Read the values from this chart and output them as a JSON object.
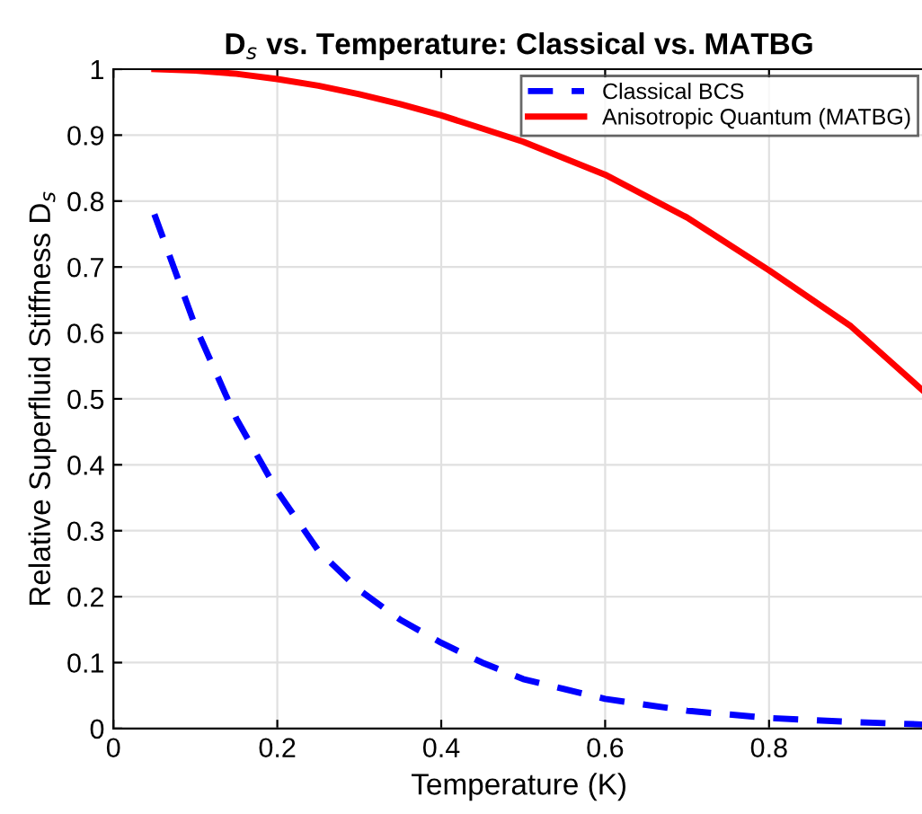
{
  "chart_data": {
    "type": "line",
    "title": "D$_{s}$ vs. Temperature: Classical vs. MATBG",
    "xlabel": "Temperature (K)",
    "ylabel": "Relative Superfluid Stiffness D$_{s}$",
    "x": [
      0.05,
      0.1,
      0.15,
      0.2,
      0.25,
      0.3,
      0.35,
      0.4,
      0.45,
      0.5,
      0.6,
      0.7,
      0.8,
      0.9,
      0.99
    ],
    "series": [
      {
        "name": "Classical BCS",
        "color": "#0000ff",
        "line_style": "dashed",
        "values": [
          0.78,
          0.61,
          0.47,
          0.36,
          0.27,
          0.21,
          0.165,
          0.13,
          0.1,
          0.075,
          0.045,
          0.027,
          0.016,
          0.01,
          0.006
        ]
      },
      {
        "name": "Anisotropic Quantum (MATBG)",
        "color": "#ff0000",
        "line_style": "solid",
        "values": [
          1.0,
          0.998,
          0.993,
          0.985,
          0.975,
          0.962,
          0.947,
          0.93,
          0.91,
          0.89,
          0.84,
          0.775,
          0.695,
          0.61,
          0.51
        ]
      }
    ],
    "xlim": [
      0,
      0.99
    ],
    "ylim": [
      0,
      1
    ],
    "xticks": [
      0,
      0.2,
      0.4,
      0.6,
      0.8
    ],
    "yticks": [
      0,
      0.1,
      0.2,
      0.3,
      0.4,
      0.5,
      0.6,
      0.7,
      0.8,
      0.9,
      1
    ],
    "grid": true,
    "legend": "top right"
  }
}
